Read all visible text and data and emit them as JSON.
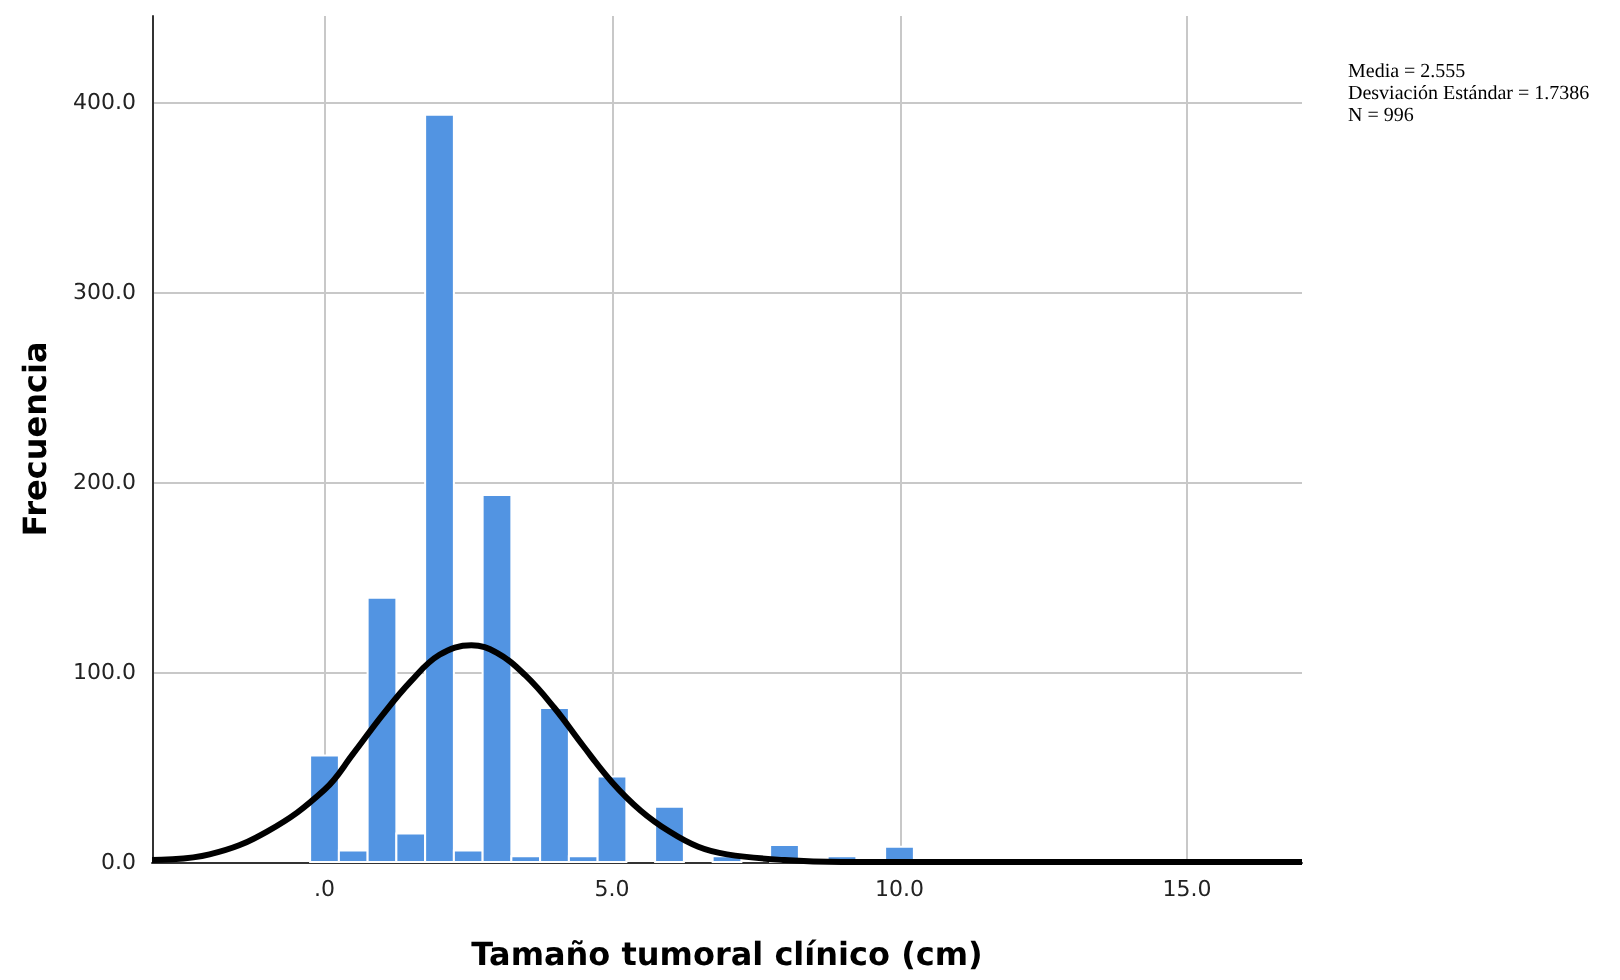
{
  "chart_data": {
    "type": "histogram",
    "xlabel": "Tamaño tumoral clínico (cm)",
    "ylabel": "Frecuencia",
    "bins": [
      -0.25,
      0.25,
      0.75,
      1.25,
      1.75,
      2.25,
      2.75,
      3.25,
      3.75,
      4.25,
      4.75,
      5.25,
      5.75,
      6.25,
      6.75,
      7.25,
      7.75,
      8.25,
      8.75,
      9.25,
      9.75,
      10.25
    ],
    "values": [
      56,
      6,
      139,
      15,
      393,
      6,
      193,
      3,
      81,
      3,
      45,
      0,
      29,
      0,
      3,
      0,
      9,
      0,
      3,
      0,
      8
    ],
    "color": "#5294e2",
    "series": [
      {
        "type": "line",
        "color": "#000000",
        "x": [
          -3,
          -2,
          -1,
          0,
          0.5,
          1,
          1.5,
          2,
          2.555,
          3,
          3.5,
          4,
          4.5,
          5,
          5.5,
          6,
          6.5,
          7,
          8,
          9,
          17
        ],
        "values": [
          1,
          4,
          16,
          38,
          57,
          77,
          95,
          109,
          114,
          110,
          98,
          81,
          61,
          42,
          27,
          16,
          8,
          4,
          1,
          0,
          0
        ]
      }
    ],
    "xlim": [
      -3,
      17
    ],
    "xticks": [
      {
        "value": 0,
        "label": ".0"
      },
      {
        "value": 5,
        "label": "5.0"
      },
      {
        "value": 10,
        "label": "10.0"
      },
      {
        "value": 15,
        "label": "15.0"
      }
    ],
    "ylim": [
      0,
      445
    ],
    "yticks": [
      {
        "value": 0,
        "label": "0.0"
      },
      {
        "value": 100,
        "label": "100.0"
      },
      {
        "value": 200,
        "label": "200.0"
      },
      {
        "value": 300,
        "label": "300.0"
      },
      {
        "value": 400,
        "label": "400.0"
      }
    ],
    "grid": true,
    "annotations": [
      "Media = 2.555",
      "Desviación Estándar = 1.7386",
      "N = 996"
    ]
  }
}
